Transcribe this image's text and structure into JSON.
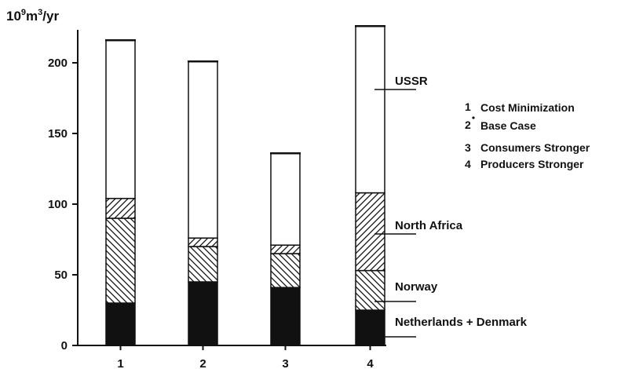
{
  "chart_data": {
    "type": "bar",
    "stacked": true,
    "y_unit": {
      "base": "10",
      "exp": "9",
      "unit": "m",
      "unit_exp": "3",
      "per": "/yr"
    },
    "ylim": [
      0,
      225
    ],
    "yticks": [
      "0",
      "50",
      "100",
      "150",
      "200"
    ],
    "ytick_values": [
      0,
      50,
      100,
      150,
      200
    ],
    "categories": [
      "1",
      "2",
      "3",
      "4"
    ],
    "series": [
      {
        "name": "Netherlands + Denmark",
        "pattern": "solid-black",
        "values": [
          30,
          45,
          41,
          25
        ]
      },
      {
        "name": "Norway",
        "pattern": "hatch-back-diagonal",
        "values": [
          60,
          25,
          24,
          28
        ]
      },
      {
        "name": "North Africa",
        "pattern": "hatch-forward-diagonal",
        "values": [
          14,
          6,
          6,
          55
        ]
      },
      {
        "name": "USSR",
        "pattern": "white",
        "values": [
          112,
          125,
          65,
          118
        ]
      }
    ],
    "series_label_positions": "right-of-bar-4",
    "legend": {
      "placement": "right",
      "entries": [
        {
          "key": "1",
          "label": "Cost Minimization"
        },
        {
          "key": "2",
          "label": "Base Case"
        },
        {
          "key": "3",
          "label": "Consumers Stronger"
        },
        {
          "key": "4",
          "label": "Producers Stronger"
        }
      ]
    },
    "grid": false
  }
}
